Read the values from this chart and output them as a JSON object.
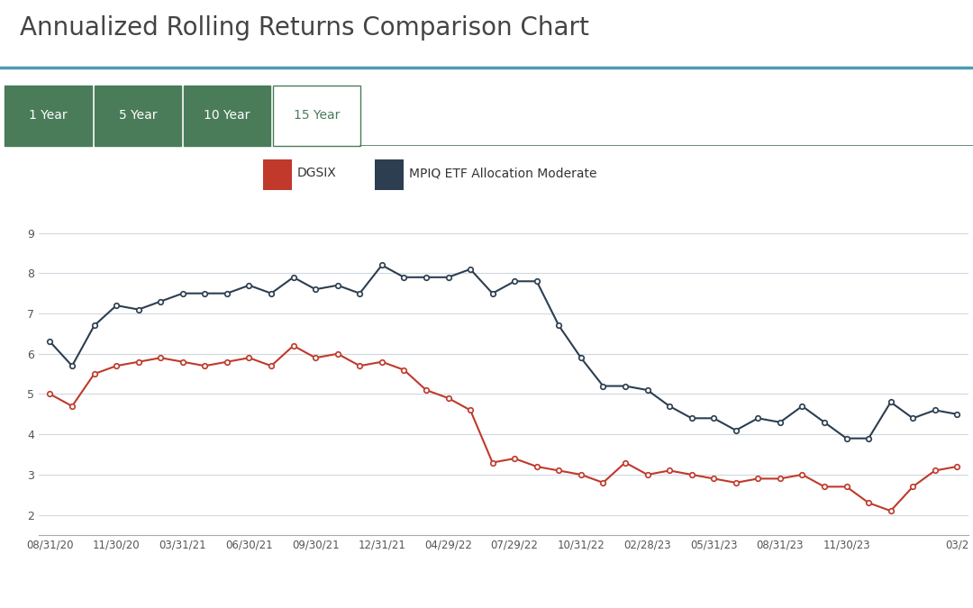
{
  "title": "Annualized Rolling Returns Comparison Chart",
  "tabs": [
    "1 Year",
    "5 Year",
    "10 Year",
    "15 Year"
  ],
  "active_tab": "15 Year",
  "legend": [
    "DGSIX",
    "MPIQ ETF Allocation Moderate"
  ],
  "dgsix_color": "#c0392b",
  "mpiq_color": "#2c3e50",
  "background_color": "#ffffff",
  "tab_bg_color": "#4a7c59",
  "tab_active_color": "#ffffff",
  "tab_active_text_color": "#4a7c59",
  "tab_text_color": "#ffffff",
  "header_line_color": "#4a9ab5",
  "grid_color": "#d0d8e0",
  "mpiq_x": [
    0,
    1,
    2,
    3,
    4,
    5,
    6,
    7,
    8,
    9,
    10,
    11,
    12,
    13,
    14,
    15,
    16,
    17,
    18,
    19,
    20,
    21,
    22,
    23,
    24,
    25,
    26,
    27,
    28,
    29,
    30,
    31,
    32,
    33,
    34,
    35,
    36,
    37,
    38,
    39,
    40,
    41
  ],
  "mpiq_y": [
    6.3,
    5.7,
    6.7,
    7.2,
    7.1,
    7.3,
    7.5,
    7.5,
    7.5,
    7.7,
    7.5,
    7.9,
    7.6,
    7.7,
    7.5,
    8.2,
    7.9,
    7.9,
    7.9,
    8.1,
    7.5,
    7.8,
    7.8,
    6.7,
    5.9,
    5.2,
    5.2,
    5.1,
    4.7,
    4.4,
    4.4,
    4.1,
    4.4,
    4.3,
    4.7,
    4.3,
    3.9,
    3.9,
    4.8,
    4.4,
    4.6,
    4.5
  ],
  "dgsix_x": [
    0,
    1,
    2,
    3,
    4,
    5,
    6,
    7,
    8,
    9,
    10,
    11,
    12,
    13,
    14,
    15,
    16,
    17,
    18,
    19,
    20,
    21,
    22,
    23,
    24,
    25,
    26,
    27,
    28,
    29,
    30,
    31,
    32,
    33,
    34,
    35,
    36,
    37,
    38,
    39,
    40,
    41
  ],
  "dgsix_y": [
    5.0,
    4.7,
    5.5,
    5.7,
    5.8,
    5.9,
    5.8,
    5.7,
    5.8,
    5.9,
    5.7,
    6.2,
    5.9,
    6.0,
    5.7,
    5.8,
    5.6,
    5.1,
    4.9,
    4.6,
    3.3,
    3.4,
    3.2,
    3.1,
    3.0,
    2.8,
    3.3,
    3.0,
    3.1,
    3.0,
    2.9,
    2.8,
    2.9,
    2.9,
    3.0,
    2.7,
    2.7,
    2.3,
    2.1,
    2.7,
    3.1,
    3.2
  ],
  "ylim": [
    1.5,
    9.5
  ],
  "ytick_positions": [
    2,
    3,
    4,
    5,
    6,
    7,
    8,
    9
  ],
  "ytick_labels": [
    "2",
    "3",
    "4",
    "5",
    "6",
    "7",
    "8",
    "9"
  ],
  "xtick_positions": [
    0,
    3,
    6,
    9,
    12,
    15,
    18,
    21,
    24,
    27,
    30,
    33,
    36,
    41
  ],
  "xtick_labels": [
    "08/31/20",
    "11/30/20",
    "03/31/21",
    "06/30/21",
    "09/30/21",
    "12/31/21",
    "04/29/22",
    "07/29/22",
    "10/31/22",
    "02/28/23",
    "05/31/23",
    "08/31/23",
    "11/30/23",
    "03/2"
  ]
}
